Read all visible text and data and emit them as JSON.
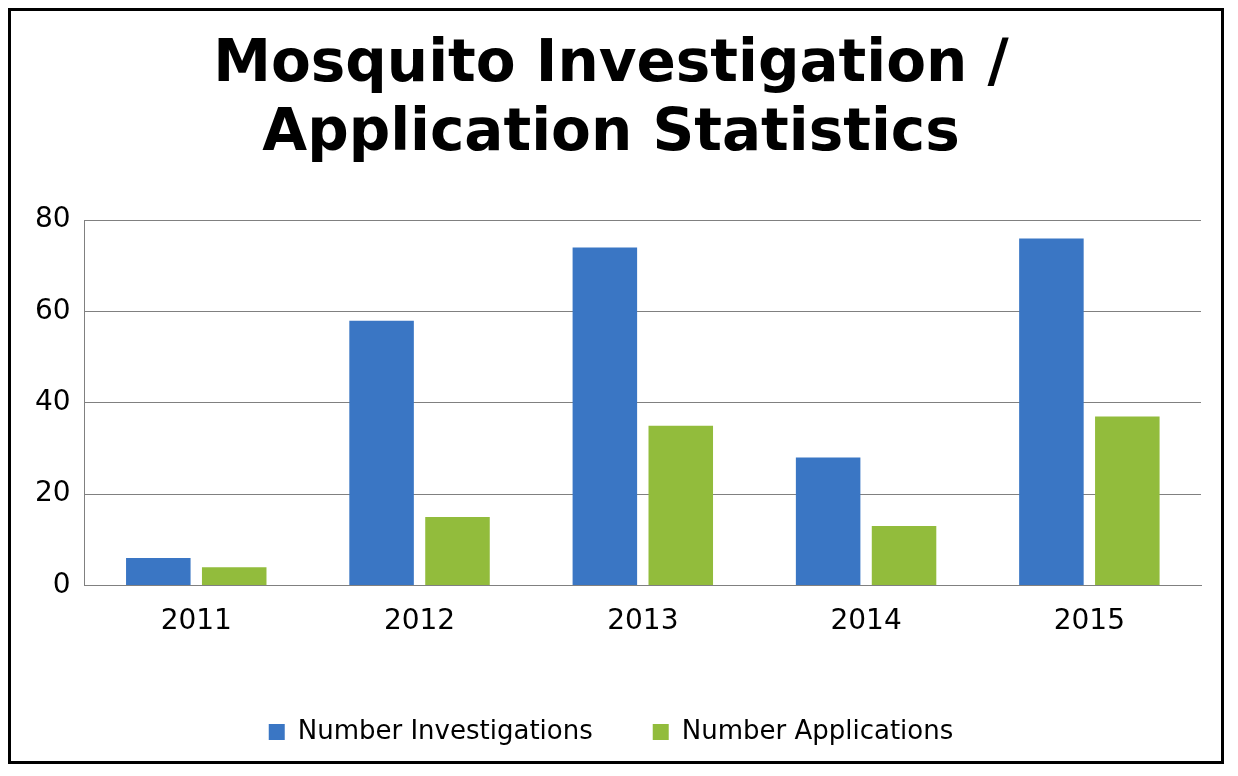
{
  "chart_data": {
    "type": "bar",
    "title": "Mosquito Investigation / Application Statistics",
    "categories": [
      "2011",
      "2012",
      "2013",
      "2014",
      "2015"
    ],
    "series": [
      {
        "name": "Number Investigations",
        "color": "#3a76c4",
        "values": [
          6,
          58,
          74,
          28,
          76
        ]
      },
      {
        "name": "Number Applications",
        "color": "#92bc3c",
        "values": [
          4,
          15,
          35,
          13,
          37
        ]
      }
    ],
    "ylim": [
      0,
      80
    ],
    "yticks": [
      0,
      20,
      40,
      60,
      80
    ],
    "grid": "y",
    "legend": "bottom"
  }
}
